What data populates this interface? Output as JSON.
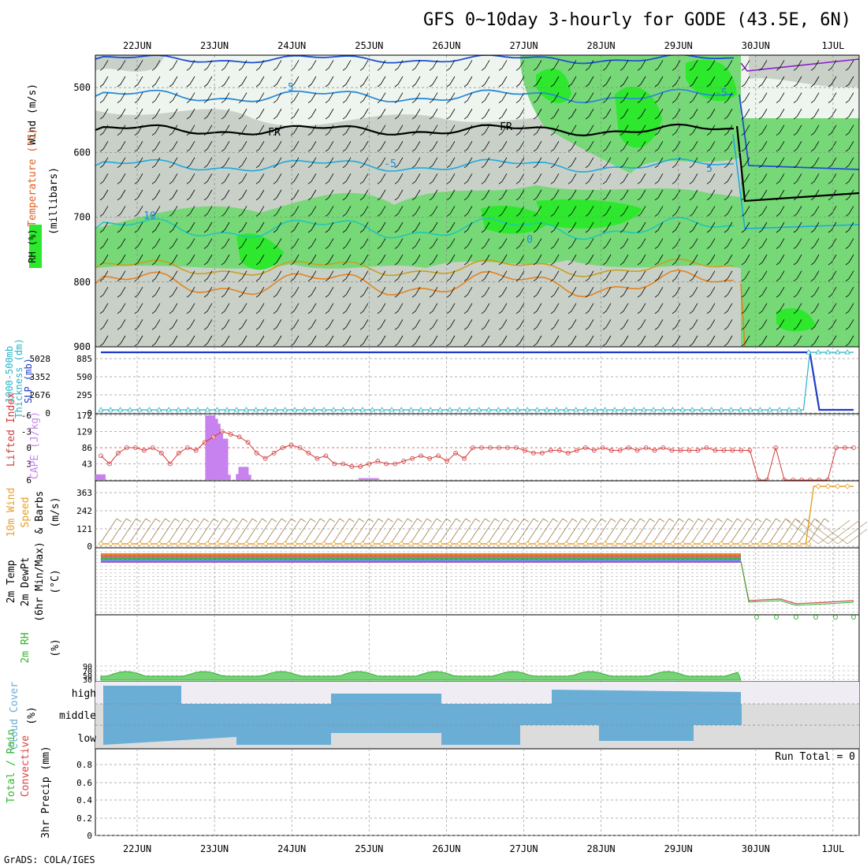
{
  "title": "GFS 0~10day 3-hourly for GODE (43.5E, 6N)",
  "footer": "GrADS: COLA/IGES",
  "dates": [
    "22JUN",
    "23JUN",
    "24JUN",
    "25JUN",
    "26JUN",
    "27JUN",
    "28JUN",
    "29JUN",
    "30JUN",
    "1JUL"
  ],
  "colors": {
    "wind_barb": "#000000",
    "rh_light": "#c8d0c8",
    "rh_green": "#77d877",
    "rh_bright": "#2ee82e",
    "fr": "#000000",
    "temp_neg": "#1e64d2",
    "temp_pos": "#e6821e",
    "slp": "#1e3cc8",
    "thickness": "#26b4c8",
    "lifted": "#d23c3c",
    "cape": "#c882f0",
    "wind10": "#e6a028",
    "barb10": "#a08250",
    "rh2m": "#32b432",
    "cloud": "#6aaed6"
  },
  "chart_data": [
    {
      "type": "heatmap",
      "name": "upper",
      "ylabel_parts": [
        "RH (%)",
        "Temperature (°C)",
        "Wind (m/s)"
      ],
      "ylabel2": "(millibars)",
      "yticks": [
        500,
        600,
        700,
        800,
        900
      ],
      "ylim": [
        450,
        900
      ],
      "contour_labels": [
        "-5",
        "-5",
        "-5",
        "5",
        "0",
        "10",
        "FR",
        "FR"
      ]
    },
    {
      "type": "line",
      "name": "slp_thickness",
      "ylabel_parts": [
        "1000-500mb",
        "Thickness (dm)",
        "SLP (mb)"
      ],
      "left_ticks": [
        "885",
        "590",
        "295",
        "0"
      ],
      "left_ticks2": [
        "5028",
        "3352",
        "2676",
        "0"
      ],
      "slp_level": [
        885,
        0
      ],
      "thickness_level": [
        0,
        885
      ],
      "switch_day": 8.7
    },
    {
      "type": "bar",
      "name": "cape_li",
      "ylabel_parts": [
        "Lifted Index",
        "CAPE (J/kg)"
      ],
      "left_ticks": [
        "-6",
        "-3",
        "0",
        "3",
        "6"
      ],
      "right_ticks": [
        "172",
        "129",
        "86",
        "43"
      ],
      "cape_values": [
        15,
        0,
        0,
        0,
        0,
        0,
        0,
        0,
        0,
        0,
        0,
        0,
        0,
        0,
        0,
        0,
        0,
        0,
        0,
        0,
        0,
        0,
        0,
        0,
        0,
        0,
        0,
        0,
        0,
        0,
        0,
        0,
        0,
        0,
        0,
        0,
        0,
        0,
        0,
        0,
        0,
        0,
        0,
        172,
        163,
        150,
        130,
        66,
        110,
        14,
        0,
        0,
        0,
        0,
        0,
        16,
        35,
        14,
        0,
        0,
        0,
        0,
        0,
        0,
        0,
        0,
        0,
        0,
        0,
        0,
        0,
        0,
        0,
        0,
        0,
        0,
        0,
        0,
        0,
        0,
        0,
        0,
        0,
        0,
        0,
        0,
        0,
        0,
        0,
        0,
        0,
        0,
        0,
        0,
        0,
        0,
        0,
        0,
        0,
        0,
        0,
        0,
        0,
        5,
        0,
        0,
        0,
        5,
        0,
        0,
        0,
        0,
        0,
        0,
        0,
        0,
        0,
        0,
        0,
        0,
        0,
        0,
        0,
        0,
        0,
        0,
        0,
        0,
        0,
        0,
        0,
        0,
        0,
        0,
        0,
        0,
        0,
        0,
        0,
        0,
        0,
        0,
        0,
        0,
        0,
        0,
        0,
        0,
        0,
        0,
        0,
        0,
        0,
        0,
        0,
        0,
        0,
        0,
        0,
        0,
        0,
        0,
        0,
        0,
        0,
        0,
        0,
        0,
        0,
        0,
        0,
        0,
        0,
        0,
        0,
        0,
        0,
        0,
        0,
        0,
        0,
        0,
        0,
        0,
        0,
        0,
        0,
        0,
        0,
        0,
        0,
        0,
        0,
        0,
        0,
        0,
        0,
        0,
        0,
        0,
        0,
        0,
        0,
        0,
        0,
        0,
        0,
        0,
        0,
        0,
        0,
        0,
        0,
        0,
        0,
        0,
        0,
        0,
        0,
        0,
        0,
        0,
        0,
        0,
        0,
        0,
        0,
        0,
        0,
        0,
        0,
        0,
        0,
        0,
        0,
        0,
        0,
        0,
        0,
        0,
        0,
        0,
        0,
        0,
        0,
        0,
        0,
        0,
        0,
        0,
        0,
        0,
        0,
        0,
        0,
        0,
        0,
        0,
        0,
        0,
        0,
        0,
        0,
        0,
        0,
        0,
        0,
        0,
        0,
        0,
        0,
        0,
        0,
        0,
        0,
        0,
        0,
        0,
        0,
        0,
        0,
        0,
        0,
        0,
        0,
        0,
        0,
        0,
        0,
        0,
        0,
        0,
        0,
        0,
        0,
        0,
        0,
        0,
        0
      ],
      "li_values": [
        1.5,
        3,
        1,
        0,
        0,
        0.5,
        0,
        1,
        3,
        1,
        0,
        0.5,
        -1,
        -2,
        -3,
        -2.5,
        -2,
        -1,
        1,
        2,
        1,
        0,
        -0.5,
        0,
        1,
        2,
        1.5,
        3,
        3,
        3.5,
        3.5,
        3,
        2.5,
        3,
        3,
        2.5,
        2,
        1.5,
        2,
        1.5,
        2.5,
        1,
        2,
        0,
        0,
        0,
        0,
        0,
        0,
        0.5,
        1,
        1,
        0.5,
        0.5,
        1,
        0.5,
        0,
        0.5,
        0,
        0.5,
        0.5,
        0,
        0.5,
        0,
        0.5,
        0,
        0.5,
        0.5,
        0.5,
        0.5,
        0,
        0.5,
        0.5,
        0.5,
        0.5,
        0.5,
        6,
        6,
        0,
        6,
        6,
        6,
        6,
        6,
        6,
        0,
        0,
        0
      ]
    },
    {
      "type": "line",
      "name": "wind10m",
      "ylabel_parts": [
        "10m Wind",
        "Speed",
        "& Barbs",
        "(m/s)"
      ],
      "left_ticks": [
        "363",
        "242",
        "121",
        "0"
      ],
      "values_before": 0,
      "values_after": 363,
      "switch_day": 8.75
    },
    {
      "type": "line",
      "name": "temp2m",
      "ylabel_parts": [
        "2m Temp",
        "2m DewPt",
        "(6hr Min/Max)",
        "(°C)"
      ]
    },
    {
      "type": "area",
      "name": "rh2m",
      "ylabel_parts": [
        "2m RH",
        "(%)"
      ],
      "left_ticks": [
        "90",
        "70",
        "50",
        "30"
      ]
    },
    {
      "type": "area",
      "name": "cloud",
      "ylabel_parts": [
        "Cloud Cover",
        "(%)"
      ],
      "levels": [
        "high",
        "middle",
        "low"
      ]
    },
    {
      "type": "bar",
      "name": "precip",
      "ylabel_parts": [
        "Total / Rain",
        "Convective",
        "3hr Precip (mm)"
      ],
      "left_ticks": [
        "0.8",
        "0.6",
        "0.4",
        "0.2",
        "0"
      ],
      "run_total": "Run Total = 0"
    }
  ]
}
